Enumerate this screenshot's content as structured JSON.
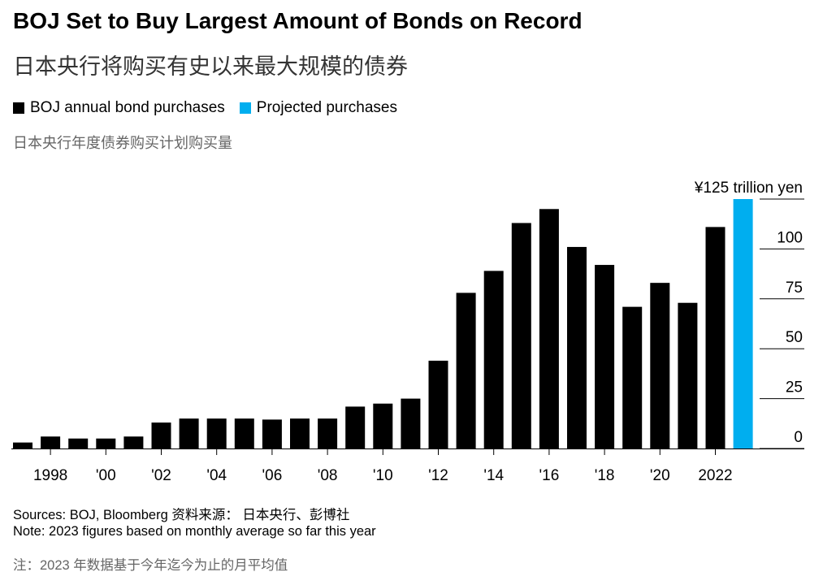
{
  "title": "BOJ Set to Buy Largest Amount of Bonds on Record",
  "subtitle": "日本央行将购买有史以来最大规模的债券",
  "legend": {
    "items": [
      {
        "label": "BOJ annual bond purchases",
        "color": "#000000"
      },
      {
        "label": "Projected purchases",
        "color": "#00aeef"
      }
    ],
    "sub_label": "日本央行年度债券购买计划购买量"
  },
  "chart_data": {
    "type": "bar",
    "categories": [
      "1997",
      "1998",
      "1999",
      "2000",
      "2001",
      "2002",
      "2003",
      "2004",
      "2005",
      "2006",
      "2007",
      "2008",
      "2009",
      "2010",
      "2011",
      "2012",
      "2013",
      "2014",
      "2015",
      "2016",
      "2017",
      "2018",
      "2019",
      "2020",
      "2021",
      "2022",
      "2023"
    ],
    "series": [
      {
        "name": "BOJ annual bond purchases",
        "color": "#000000",
        "values": [
          3,
          6,
          5,
          5,
          6,
          13,
          15,
          15,
          15,
          14.5,
          15,
          15,
          21,
          22.5,
          25,
          44,
          78,
          89,
          113,
          120,
          101,
          92,
          71,
          83,
          73,
          111,
          null
        ]
      },
      {
        "name": "Projected purchases",
        "color": "#00aeef",
        "values": [
          null,
          null,
          null,
          null,
          null,
          null,
          null,
          null,
          null,
          null,
          null,
          null,
          null,
          null,
          null,
          null,
          null,
          null,
          null,
          null,
          null,
          null,
          null,
          null,
          null,
          null,
          125
        ]
      }
    ],
    "x_tick_labels": [
      {
        "category": "1998",
        "label": "1998"
      },
      {
        "category": "2000",
        "label": "'00"
      },
      {
        "category": "2002",
        "label": "'02"
      },
      {
        "category": "2004",
        "label": "'04"
      },
      {
        "category": "2006",
        "label": "'06"
      },
      {
        "category": "2008",
        "label": "'08"
      },
      {
        "category": "2010",
        "label": "'10"
      },
      {
        "category": "2012",
        "label": "'12"
      },
      {
        "category": "2014",
        "label": "'14"
      },
      {
        "category": "2016",
        "label": "'16"
      },
      {
        "category": "2018",
        "label": "'18"
      },
      {
        "category": "2020",
        "label": "'20"
      },
      {
        "category": "2022",
        "label": "2022"
      }
    ],
    "y_ticks": [
      {
        "value": 0,
        "label": "0"
      },
      {
        "value": 25,
        "label": "25"
      },
      {
        "value": 50,
        "label": "50"
      },
      {
        "value": 75,
        "label": "75"
      },
      {
        "value": 100,
        "label": "100"
      },
      {
        "value": 125,
        "label": "¥125 trillion yen"
      }
    ],
    "ylim": [
      0,
      125
    ],
    "y_axis_side": "right",
    "grid": false
  },
  "footer": {
    "sources": "Sources: BOJ, Bloomberg 资料来源： 日本央行、彭博社",
    "note": "Note: 2023 figures based on monthly average so far this year",
    "note_cn": "注：2023 年数据基于今年迄今为止的月平均值"
  }
}
